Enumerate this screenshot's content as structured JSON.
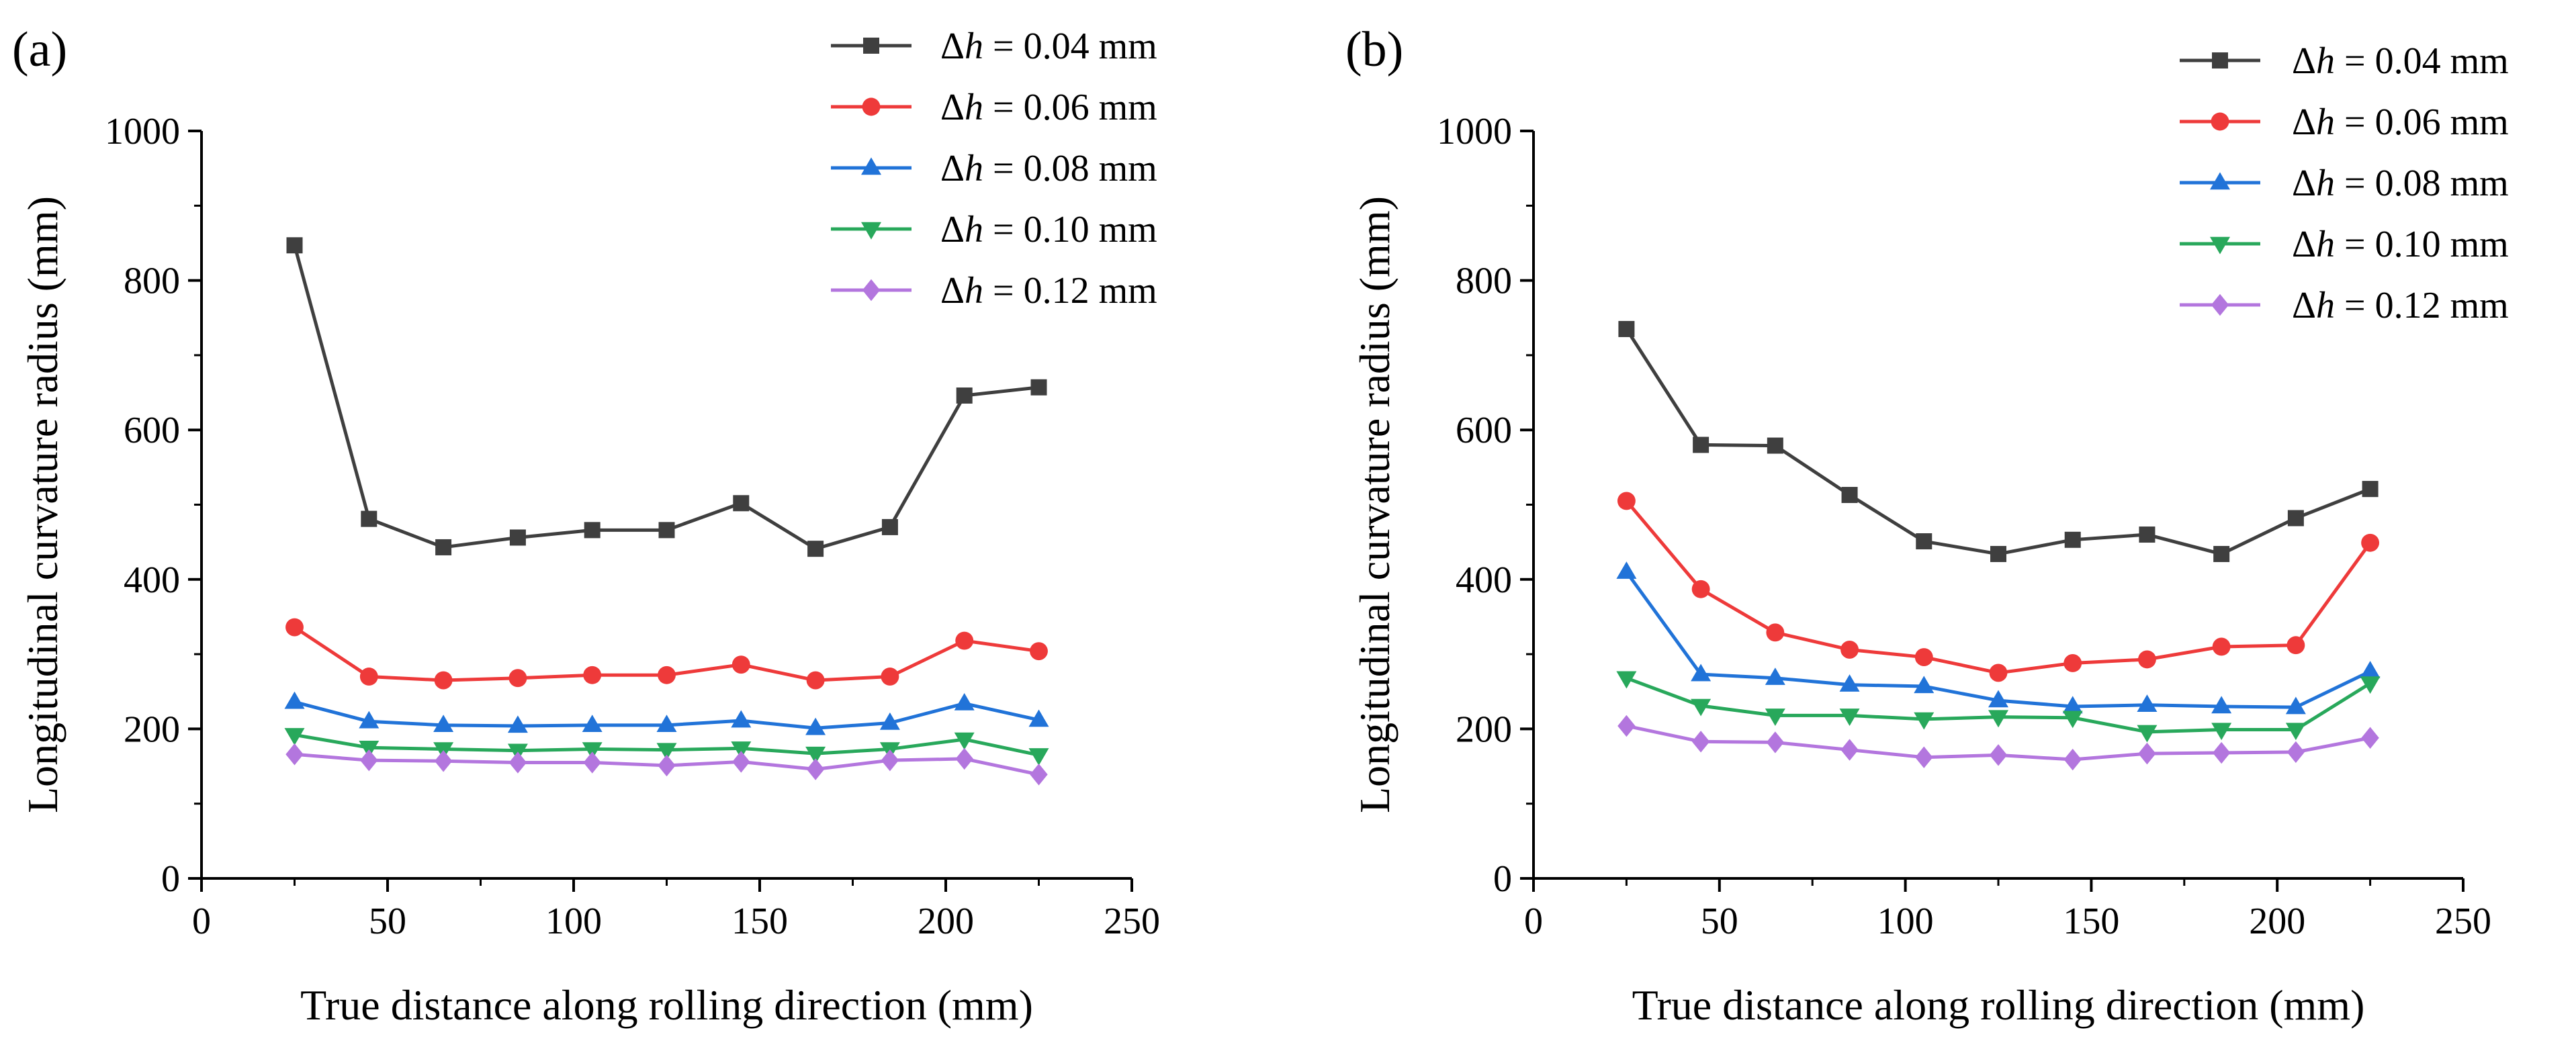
{
  "chart_data": [
    {
      "type": "line",
      "panel_label": "(a)",
      "title": "",
      "xlabel": "True distance along rolling direction (mm)",
      "ylabel": "Longitudinal curvature radius (mm)",
      "xlim": [
        0,
        250
      ],
      "ylim": [
        0,
        1000
      ],
      "xticks": [
        0,
        50,
        100,
        150,
        200,
        250
      ],
      "yticks": [
        0,
        200,
        400,
        600,
        800,
        1000
      ],
      "xtick_labels": [
        "0",
        "50",
        "100",
        "150",
        "200",
        "250"
      ],
      "ytick_labels": [
        "0",
        "200",
        "400",
        "600",
        "800",
        "1000"
      ],
      "grid": false,
      "legend_position": "top-right",
      "x": [
        25,
        45,
        65,
        85,
        105,
        125,
        145,
        165,
        185,
        205,
        225
      ],
      "series": [
        {
          "name": "Δh = 0.04 mm",
          "symbol": "Δ",
          "var": "h",
          "rest": " = 0.04 mm",
          "color": "#3f3f3f",
          "marker": "square",
          "values": [
            847,
            481,
            443,
            456,
            466,
            466,
            502,
            441,
            470,
            646,
            657
          ]
        },
        {
          "name": "Δh = 0.06 mm",
          "symbol": "Δ",
          "var": "h",
          "rest": " = 0.06 mm",
          "color": "#ee3a3a",
          "marker": "circle",
          "values": [
            336,
            270,
            265,
            268,
            272,
            272,
            286,
            265,
            270,
            318,
            304
          ]
        },
        {
          "name": "Δh = 0.08 mm",
          "symbol": "Δ",
          "var": "h",
          "rest": " = 0.08 mm",
          "color": "#2173d8",
          "marker": "triangle-up",
          "values": [
            236,
            210,
            205,
            204,
            205,
            205,
            211,
            201,
            208,
            234,
            212
          ]
        },
        {
          "name": "Δh = 0.10 mm",
          "symbol": "Δ",
          "var": "h",
          "rest": " = 0.10 mm",
          "color": "#28a85b",
          "marker": "triangle-down",
          "values": [
            192,
            175,
            173,
            171,
            173,
            172,
            174,
            167,
            173,
            186,
            165
          ]
        },
        {
          "name": "Δh = 0.12 mm",
          "symbol": "Δ",
          "var": "h",
          "rest": " = 0.12 mm",
          "color": "#b376de",
          "marker": "diamond",
          "values": [
            166,
            158,
            157,
            155,
            155,
            151,
            156,
            146,
            158,
            160,
            139
          ]
        }
      ]
    },
    {
      "type": "line",
      "panel_label": "(b)",
      "title": "",
      "xlabel": "True distance along rolling direction (mm)",
      "ylabel": "Longitudinal curvature radius (mm)",
      "xlim": [
        0,
        250
      ],
      "ylim": [
        0,
        1000
      ],
      "xticks": [
        0,
        50,
        100,
        150,
        200,
        250
      ],
      "yticks": [
        0,
        200,
        400,
        600,
        800,
        1000
      ],
      "xtick_labels": [
        "0",
        "50",
        "100",
        "150",
        "200",
        "250"
      ],
      "ytick_labels": [
        "0",
        "200",
        "400",
        "600",
        "800",
        "1000"
      ],
      "grid": false,
      "legend_position": "top-right",
      "x": [
        25,
        45,
        65,
        85,
        105,
        125,
        145,
        165,
        185,
        205,
        225
      ],
      "series": [
        {
          "name": "Δh = 0.04 mm",
          "symbol": "Δ",
          "var": "h",
          "rest": " = 0.04 mm",
          "color": "#3f3f3f",
          "marker": "square",
          "values": [
            735,
            580,
            579,
            513,
            451,
            434,
            453,
            460,
            434,
            482,
            521
          ]
        },
        {
          "name": "Δh = 0.06 mm",
          "symbol": "Δ",
          "var": "h",
          "rest": " = 0.06 mm",
          "color": "#ee3a3a",
          "marker": "circle",
          "values": [
            505,
            387,
            329,
            306,
            296,
            275,
            288,
            293,
            310,
            312,
            449
          ]
        },
        {
          "name": "Δh = 0.08 mm",
          "symbol": "Δ",
          "var": "h",
          "rest": " = 0.08 mm",
          "color": "#2173d8",
          "marker": "triangle-up",
          "values": [
            410,
            273,
            268,
            259,
            257,
            238,
            230,
            232,
            230,
            229,
            277
          ]
        },
        {
          "name": "Δh = 0.10 mm",
          "symbol": "Δ",
          "var": "h",
          "rest": " = 0.10 mm",
          "color": "#28a85b",
          "marker": "triangle-down",
          "values": [
            268,
            231,
            218,
            218,
            213,
            216,
            215,
            196,
            199,
            199,
            261
          ]
        },
        {
          "name": "Δh = 0.12 mm",
          "symbol": "Δ",
          "var": "h",
          "rest": " = 0.12 mm",
          "color": "#b376de",
          "marker": "diamond",
          "values": [
            204,
            183,
            182,
            172,
            162,
            165,
            159,
            167,
            168,
            169,
            188
          ]
        }
      ]
    }
  ]
}
